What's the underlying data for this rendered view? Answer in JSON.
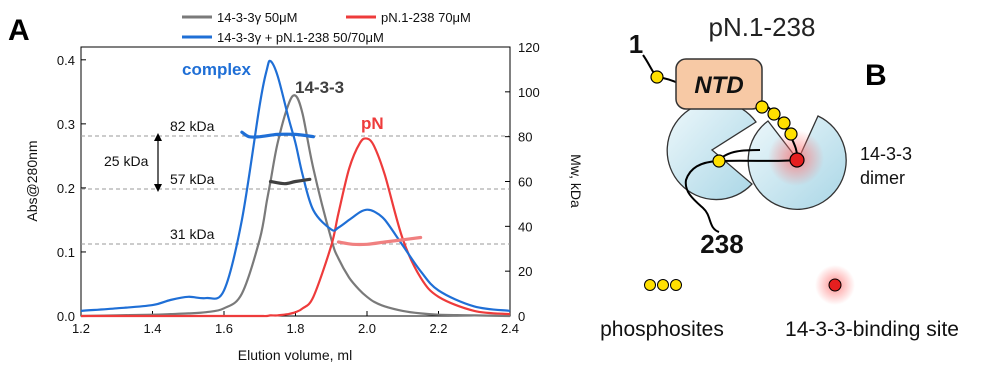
{
  "panel_a": {
    "label": "A",
    "x_axis_label": "Elution volume, ml",
    "y_axis_left_label": "Abs@280nm",
    "y_axis_right_label": "Mw, kDa",
    "x_ticks": [
      "1.2",
      "1.4",
      "1.6",
      "1.8",
      "2.0",
      "2.2",
      "2.4"
    ],
    "y_left_ticks": [
      "0.0",
      "0.1",
      "0.2",
      "0.3",
      "0.4"
    ],
    "y_right_ticks": [
      "0",
      "20",
      "40",
      "60",
      "80",
      "100",
      "120"
    ],
    "legend": {
      "entry1": "14-3-3γ 50μM",
      "entry2": "pN.1-238 70μM",
      "entry3": "14-3-3γ + pN.1-238  50/70μM"
    },
    "annotations": {
      "mw82": "82 kDa",
      "mw57": "57 kDa",
      "mw31": "31 kDa",
      "diff": "25 kDa",
      "peak_complex": "complex",
      "peak_1433": "14-3-3",
      "peak_pn": "pN"
    },
    "colors": {
      "gray": "#7a7a7a",
      "red": "#ee3b3b",
      "blue": "#1f6fd6",
      "blue_mw": "#1f6fd6",
      "gray_mw": "#404040",
      "red_mw": "#f08080"
    }
  },
  "chart_data": {
    "type": "line",
    "xlabel": "Elution volume, ml",
    "ylabel": "Abs@280nm",
    "y2label": "Mw, kDa",
    "xlim": [
      1.2,
      2.4
    ],
    "ylim": [
      0,
      0.42
    ],
    "y2lim": [
      0,
      120
    ],
    "grid": false,
    "legend_position": "top",
    "x": [
      1.2,
      1.3,
      1.4,
      1.45,
      1.5,
      1.55,
      1.6,
      1.65,
      1.7,
      1.72,
      1.73,
      1.75,
      1.78,
      1.8,
      1.82,
      1.85,
      1.9,
      1.92,
      1.95,
      1.98,
      2.0,
      2.02,
      2.05,
      2.1,
      2.15,
      2.2,
      2.3,
      2.4
    ],
    "series": [
      {
        "name": "14-3-3γ 50μM",
        "axis": "left",
        "values": [
          0.0,
          0.001,
          0.002,
          0.003,
          0.004,
          0.006,
          0.012,
          0.035,
          0.12,
          0.18,
          0.21,
          0.27,
          0.33,
          0.344,
          0.315,
          0.23,
          0.12,
          0.09,
          0.06,
          0.04,
          0.03,
          0.022,
          0.015,
          0.008,
          0.004,
          0.002,
          0.001,
          0.0
        ]
      },
      {
        "name": "pN.1-238 70μM",
        "axis": "left",
        "values": [
          0.0,
          0.0,
          0.0,
          0.0,
          0.0,
          0.0,
          0.0,
          0.0,
          0.0,
          0.0,
          0.001,
          0.001,
          0.003,
          0.006,
          0.012,
          0.03,
          0.11,
          0.16,
          0.23,
          0.27,
          0.277,
          0.265,
          0.22,
          0.12,
          0.06,
          0.03,
          0.008,
          0.003
        ]
      },
      {
        "name": "14-3-3γ + pN.1-238  50/70μM",
        "axis": "left",
        "values": [
          0.008,
          0.012,
          0.017,
          0.025,
          0.03,
          0.028,
          0.04,
          0.15,
          0.33,
          0.385,
          0.398,
          0.375,
          0.31,
          0.27,
          0.22,
          0.165,
          0.135,
          0.138,
          0.15,
          0.162,
          0.166,
          0.163,
          0.15,
          0.11,
          0.07,
          0.04,
          0.015,
          0.008
        ]
      }
    ],
    "mw_traces": [
      {
        "name": "complex Mw",
        "axis": "right",
        "x": [
          1.65,
          1.67,
          1.7,
          1.75,
          1.8,
          1.85
        ],
        "values": [
          82,
          80,
          80,
          81,
          81,
          80
        ]
      },
      {
        "name": "14-3-3 Mw",
        "axis": "right",
        "x": [
          1.73,
          1.77,
          1.8,
          1.84
        ],
        "values": [
          60,
          59,
          60,
          61
        ]
      },
      {
        "name": "pN Mw",
        "axis": "right",
        "x": [
          1.92,
          1.96,
          2.0,
          2.05,
          2.1,
          2.15
        ],
        "values": [
          33,
          32,
          32,
          33,
          34,
          35
        ]
      }
    ],
    "reference_lines_kDa": [
      82,
      57,
      31
    ]
  },
  "panel_b": {
    "label": "B",
    "title": "pN.1-238",
    "n_term": "1",
    "c_term": "238",
    "domain": "NTD",
    "dimer_label_line1": "14-3-3",
    "dimer_label_line2": "dimer",
    "legend_phospho": "phosphosites",
    "legend_binding": "14-3-3-binding site",
    "colors": {
      "phospho": "#ffe000",
      "binding": "#e51f1f",
      "ntd_fill": "#f7c9a5",
      "cup_fill": "#cde8f2"
    }
  }
}
